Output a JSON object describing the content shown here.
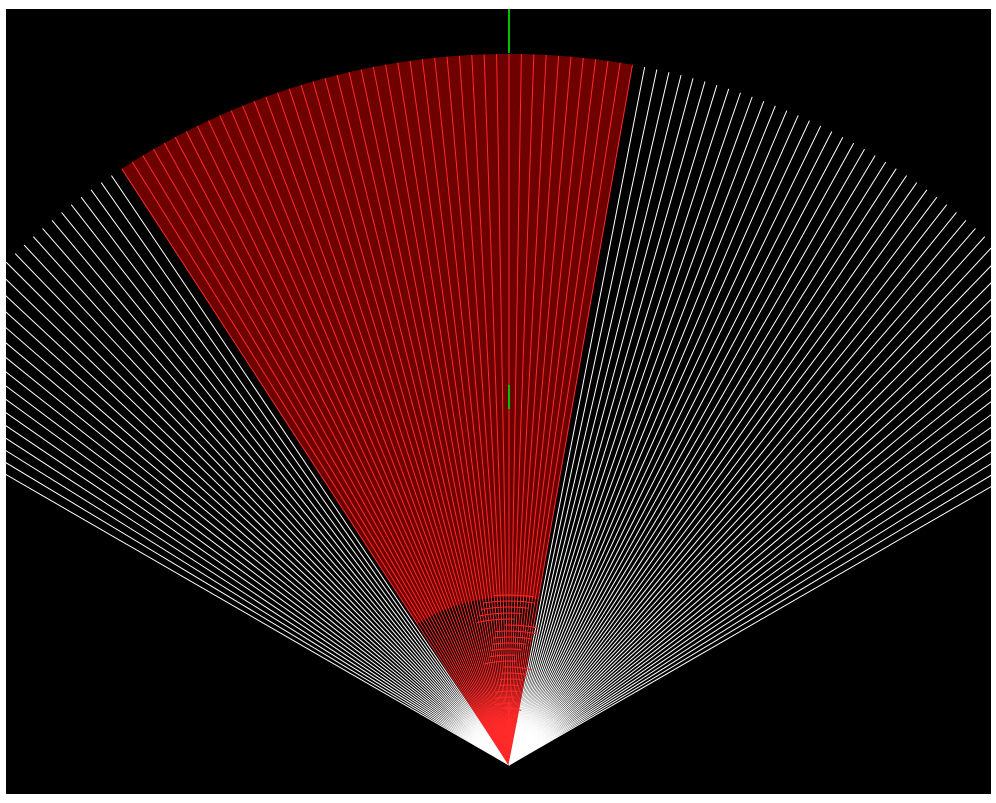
{
  "colors": {
    "background": "#000000",
    "frame": "#ffffff",
    "ray_default": "#ffffff",
    "ray_hit": "#ff2a2a",
    "hit_fill": "#6e0000",
    "center_line": "#00c000"
  },
  "fan": {
    "ray_count": 121,
    "angle_min_deg": -60,
    "angle_max_deg": 60,
    "hit_range_start_index": 27,
    "hit_range_end_index": 70
  }
}
